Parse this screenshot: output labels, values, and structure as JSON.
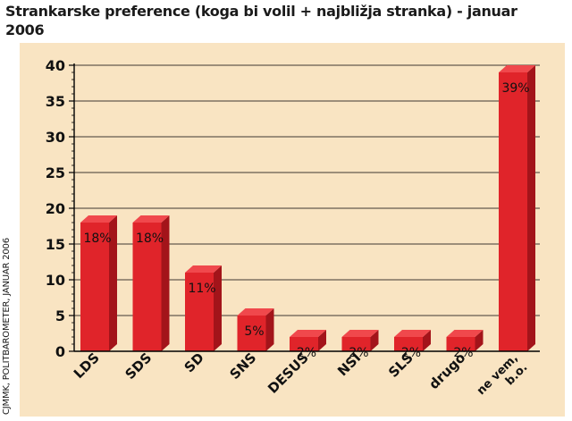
{
  "title": "Strankarske preference (koga bi volil + najbližja stranka) - januar 2006",
  "source": "CJMMK, POLITBAROMETER, JANUAR 2006",
  "colors": {
    "background": "#f9e4c2",
    "bar_front": "#e0242a",
    "bar_side": "#a3141a",
    "bar_top": "#f0484c",
    "axis": "#000000"
  },
  "chart_data": {
    "type": "bar",
    "title": "Strankarske preference (koga bi volil + najbližja stranka) - januar 2006",
    "xlabel": "",
    "ylabel": "",
    "categories": [
      "LDS",
      "SDS",
      "SD",
      "SNS",
      "DESUS",
      "NSI",
      "SLS",
      "drugo",
      "ne vem, b.o."
    ],
    "values": [
      18,
      18,
      11,
      5,
      2,
      2,
      2,
      2,
      39
    ],
    "value_labels": [
      "18%",
      "18%",
      "11%",
      "5%",
      "2%",
      "2%",
      "2%",
      "2%",
      "39%"
    ],
    "ylim": [
      0,
      40
    ],
    "yticks": [
      0,
      5,
      10,
      15,
      20,
      25,
      30,
      35,
      40
    ],
    "grid": true,
    "style": "3d"
  }
}
